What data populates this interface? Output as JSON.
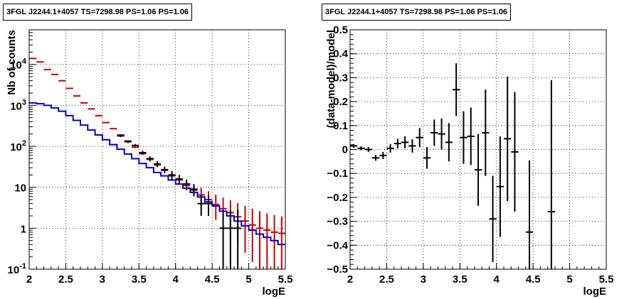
{
  "chart_data": [
    {
      "type": "line",
      "title": "3FGL J2244.1+4057 TS=7298.98 PS=1.06 PS=1.06",
      "xlabel": "logE",
      "ylabel": "Nb of counts",
      "xlim": [
        2,
        5.5
      ],
      "ylim": [
        0.1,
        70000
      ],
      "yscale": "log",
      "grid": true,
      "x_ticks": [
        "2",
        "2.5",
        "3",
        "3.5",
        "4",
        "4.5",
        "5",
        "5.5"
      ],
      "y_ticks": [
        {
          "value": 0.1,
          "label": "10^-1"
        },
        {
          "value": 1,
          "label": "1"
        },
        {
          "value": 10,
          "label": "10"
        },
        {
          "value": 100,
          "label": "10^2"
        },
        {
          "value": 1000,
          "label": "10^3"
        },
        {
          "value": 10000,
          "label": "10^4"
        }
      ],
      "bin_width": 0.1,
      "series": [
        {
          "color": "#cc0000",
          "style": "error-bars",
          "x": [
            2.05,
            2.15,
            2.25,
            2.35,
            2.45,
            2.55,
            2.65,
            2.75,
            2.85,
            2.95,
            3.05,
            3.15,
            3.25,
            3.35,
            3.45,
            3.55,
            3.65,
            3.75,
            3.85,
            3.95,
            4.05,
            4.15,
            4.25,
            4.35,
            4.45,
            4.55,
            4.65,
            4.75,
            4.85,
            4.95,
            5.05,
            5.15,
            5.25,
            5.35,
            5.45
          ],
          "y": [
            14000,
            11500,
            7500,
            5700,
            4000,
            2600,
            1700,
            1150,
            820,
            560,
            380,
            270,
            190,
            135,
            95,
            66,
            48,
            35,
            26,
            19,
            15,
            11,
            8.5,
            6.5,
            5,
            3.8,
            3.0,
            2.4,
            1.9,
            1.5,
            1.2,
            1.0,
            0.9,
            0.8,
            0.75
          ],
          "err_low": [
            0,
            0,
            0,
            0,
            0,
            0,
            0,
            0,
            0,
            0,
            0,
            0,
            0,
            0,
            0,
            0,
            0,
            0,
            0,
            0,
            0,
            0,
            0,
            3.2,
            2.6,
            2.2,
            2.0,
            1.8,
            1.5,
            1.25,
            1.05,
            0.92,
            0.82,
            0.74,
            0.7
          ],
          "err_high": [
            0,
            0,
            0,
            0,
            0,
            0,
            0,
            0,
            0,
            0,
            0,
            0,
            0,
            0,
            0,
            0,
            0,
            0,
            0,
            0,
            0,
            0,
            0,
            3.2,
            3.0,
            2.8,
            2.6,
            2.4,
            2.2,
            2.0,
            1.8,
            1.6,
            1.4,
            1.3,
            1.2
          ]
        },
        {
          "color": "#000000",
          "style": "error-bars",
          "x": [
            3.25,
            3.35,
            3.45,
            3.55,
            3.65,
            3.75,
            3.85,
            3.95,
            4.05,
            4.15,
            4.25,
            4.35,
            4.45,
            4.65,
            4.75,
            4.85
          ],
          "y": [
            180,
            130,
            105,
            70,
            50,
            37,
            27,
            20,
            16,
            12,
            9,
            4,
            4,
            1,
            1,
            1
          ],
          "err_low": [
            12,
            10,
            9,
            8,
            7,
            6,
            5,
            5,
            4,
            3.5,
            3,
            2,
            2,
            0.9,
            0.9,
            0.9
          ],
          "err_high": [
            12,
            10,
            9,
            8,
            7,
            6,
            5,
            5,
            4,
            3.5,
            3,
            2.5,
            2.5,
            1.8,
            1.8,
            1.8
          ]
        },
        {
          "color": "#0000cc",
          "style": "histogram",
          "x": [
            2.05,
            2.15,
            2.25,
            2.35,
            2.45,
            2.55,
            2.65,
            2.75,
            2.85,
            2.95,
            3.05,
            3.15,
            3.25,
            3.35,
            3.45,
            3.55,
            3.65,
            3.75,
            3.85,
            3.95,
            4.05,
            4.15,
            4.25,
            4.35,
            4.45,
            4.55,
            4.65,
            4.75,
            4.85,
            4.95,
            5.05,
            5.15,
            5.25,
            5.35,
            5.45
          ],
          "y": [
            1150,
            1100,
            1000,
            870,
            720,
            560,
            430,
            330,
            250,
            190,
            145,
            110,
            85,
            65,
            50,
            38,
            30,
            23,
            19,
            15,
            12,
            9.5,
            7.5,
            5.8,
            4.4,
            3.5,
            2.6,
            2.0,
            1.5,
            1.15,
            0.9,
            0.72,
            0.6,
            0.5,
            0.4
          ]
        }
      ]
    },
    {
      "type": "scatter",
      "title": "3FGL J2244.1+4057 TS=7298.98 PS=1.06 PS=1.06",
      "xlabel": "logE",
      "ylabel": "(data-model)/model",
      "xlim": [
        2,
        5.5
      ],
      "ylim": [
        -0.5,
        0.5
      ],
      "grid": true,
      "x_ticks": [
        "2",
        "2.5",
        "3",
        "3.5",
        "4",
        "4.5",
        "5",
        "5.5"
      ],
      "y_ticks": [
        "−0.5",
        "−0.4",
        "−0.3",
        "−0.2",
        "−0.1",
        "0",
        "0.1",
        "0.2",
        "0.3",
        "0.4",
        "0.5"
      ],
      "bin_width": 0.1,
      "series": [
        {
          "color": "#000000",
          "x": [
            2.05,
            2.15,
            2.25,
            2.35,
            2.45,
            2.55,
            2.65,
            2.75,
            2.85,
            2.95,
            3.05,
            3.15,
            3.25,
            3.35,
            3.45,
            3.55,
            3.65,
            3.75,
            3.85,
            3.95,
            4.05,
            4.15,
            4.25,
            4.45,
            4.75
          ],
          "y": [
            0.015,
            0.005,
            0.0,
            -0.035,
            -0.025,
            0.005,
            0.025,
            0.03,
            0.015,
            0.05,
            -0.035,
            0.07,
            0.065,
            0.03,
            0.25,
            0.05,
            0.055,
            -0.085,
            0.07,
            -0.29,
            -0.155,
            0.045,
            -0.01,
            -0.345,
            -0.26
          ],
          "err": [
            0.008,
            0.008,
            0.01,
            0.012,
            0.015,
            0.018,
            0.02,
            0.025,
            0.028,
            0.04,
            0.045,
            0.055,
            0.065,
            0.08,
            0.11,
            0.11,
            0.12,
            0.15,
            0.18,
            0.18,
            0.21,
            0.26,
            0.25,
            0.3,
            0.55
          ]
        }
      ]
    }
  ]
}
